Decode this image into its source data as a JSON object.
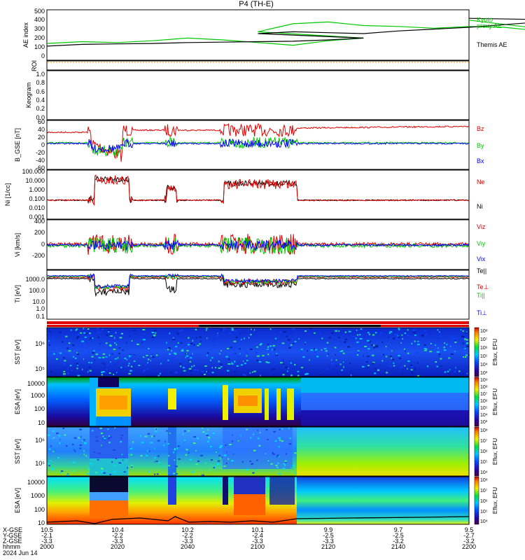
{
  "header": {
    "title": "P4 (TH-E)",
    "date": "2024 Jun 14"
  },
  "colors": {
    "black": "#000000",
    "green": "#00c800",
    "red": "#e00000",
    "blue": "#0000ff",
    "orange": "#ff9900",
    "yellow": "#e8e800"
  },
  "chart_data": [
    {
      "type": "line",
      "id": "ae",
      "ylabel": "AE index",
      "yticks": [
        "500",
        "400",
        "300",
        "200",
        "100",
        "0"
      ],
      "ylim": [
        0,
        500
      ],
      "x": [
        2000,
        2010,
        2020,
        2030,
        2040,
        2050,
        2060,
        2070,
        2080,
        2090,
        2100,
        2110,
        2120,
        2130,
        2140,
        2150,
        2160,
        2170,
        2180,
        2190,
        2200
      ],
      "series": [
        {
          "name": "Kyoto proxy AE",
          "color": "#00c800",
          "values": [
            140,
            160,
            150,
            170,
            200,
            180,
            150,
            120,
            170,
            200,
            270,
            360,
            380,
            340,
            330,
            310,
            330,
            320,
            280,
            260,
            400
          ]
        },
        {
          "name": "Themis AE",
          "color": "#000000",
          "values": [
            110,
            130,
            135,
            140,
            150,
            155,
            160,
            165,
            180,
            200,
            250,
            270,
            260,
            250,
            280,
            300,
            320,
            350,
            380,
            400,
            420
          ]
        }
      ],
      "legend_labels": [
        "Kyoto",
        "proxy AE",
        "Themis AE"
      ]
    },
    {
      "type": "line",
      "id": "roi",
      "ylabel": "ROI",
      "yticks": [],
      "note": "dotted flat line"
    },
    {
      "type": "line",
      "id": "keogram",
      "ylabel": "Keogram",
      "yticks": [
        "1.0",
        "0.8",
        "0.6",
        "0.4",
        "0.2",
        "0.0"
      ],
      "ylim": [
        0,
        1
      ]
    },
    {
      "type": "line",
      "id": "bfield",
      "ylabel": "B_GSE [nT]",
      "yticks": [
        "60",
        "40",
        "20",
        "0",
        "-20",
        "-40",
        "-60"
      ],
      "ylim": [
        -60,
        60
      ],
      "series_labels": [
        "Bz",
        "By",
        "Bx"
      ],
      "series_colors": [
        "#e00000",
        "#00c800",
        "#0000ff"
      ]
    },
    {
      "type": "line",
      "id": "density",
      "ylabel": "Ni [1/cc]",
      "yticks": [
        "100.000",
        "10.000",
        "1.000",
        "0.100",
        "0.010",
        "0.001"
      ],
      "ylim": [
        0.001,
        100
      ],
      "series_labels": [
        "Ne",
        "Ni"
      ],
      "series_colors": [
        "#e00000",
        "#000000"
      ]
    },
    {
      "type": "line",
      "id": "velocity",
      "ylabel": "Vi [km/s]",
      "yticks": [
        "400",
        "200",
        "0",
        "-200"
      ],
      "ylim": [
        -300,
        450
      ],
      "series_labels": [
        "Viz",
        "Viy",
        "Vix"
      ],
      "series_colors": [
        "#e00000",
        "#00c800",
        "#0000ff"
      ]
    },
    {
      "type": "line",
      "id": "temperature",
      "ylabel": "Ti [eV]",
      "yticks": [
        "1000.0",
        "100.0",
        "10.0",
        "1.0",
        "0.1"
      ],
      "ylim": [
        0.1,
        3000
      ],
      "series_labels": [
        "Te||",
        "Te⊥",
        "Ti||",
        "Ti⊥"
      ],
      "series_colors": [
        "#000000",
        "#e00000",
        "#00c800",
        "#0000ff"
      ]
    },
    {
      "type": "heatmap",
      "id": "sst_e",
      "ylabel": "SST [eV]",
      "yticks": [
        "10⁶",
        "10⁵"
      ],
      "colorbar_ticks": [
        "10⁸",
        "10⁷",
        "10⁶",
        "10⁵",
        "10⁴",
        "10³"
      ],
      "colorbar_label": "Eflux, EFU"
    },
    {
      "type": "heatmap",
      "id": "esa_e",
      "ylabel": "ESA [eV]",
      "yticks": [
        "10000",
        "1000",
        "100",
        "10"
      ],
      "colorbar_ticks": [
        "10⁹",
        "10⁸",
        "10⁷",
        "10⁶",
        "10⁵",
        "10⁴",
        "10³"
      ],
      "colorbar_label": "Eflux, EFU"
    },
    {
      "type": "heatmap",
      "id": "sst_i",
      "ylabel": "SST [eV]",
      "yticks": [
        "10⁶",
        "10⁵"
      ],
      "colorbar_ticks": [
        "10⁸",
        "10⁷",
        "10⁶",
        "10⁵",
        "10⁴"
      ],
      "colorbar_label": "Eflux, EFU"
    },
    {
      "type": "heatmap",
      "id": "esa_i",
      "ylabel": "ESA [eV]",
      "yticks": [
        "10000",
        "1000",
        "100",
        "10"
      ],
      "colorbar_ticks": [
        "10⁸",
        "10⁷",
        "10⁶",
        "10⁵",
        "10⁴"
      ],
      "colorbar_label": "Eflux, EFU"
    }
  ],
  "xaxis": {
    "row_labels": [
      "X-GSE",
      "Y-GSE",
      "Z-GSE",
      "hhmm"
    ],
    "columns": [
      {
        "x": "10.5",
        "y": "-2.1",
        "z": "-3.3",
        "t": "2000"
      },
      {
        "x": "10.4",
        "y": "-2.2",
        "z": "-3.3",
        "t": "2020"
      },
      {
        "x": "10.2",
        "y": "-2.2",
        "z": "-3.3",
        "t": "2040"
      },
      {
        "x": "10.1",
        "y": "-2.4",
        "z": "-3.3",
        "t": "2100"
      },
      {
        "x": "9.9",
        "y": "-2.5",
        "z": "-3.3",
        "t": "2120"
      },
      {
        "x": "9.7",
        "y": "-2.5",
        "z": "-3.2",
        "t": "2140"
      },
      {
        "x": "9.5",
        "y": "-2.7",
        "z": "-3.2",
        "t": "2200"
      }
    ]
  }
}
